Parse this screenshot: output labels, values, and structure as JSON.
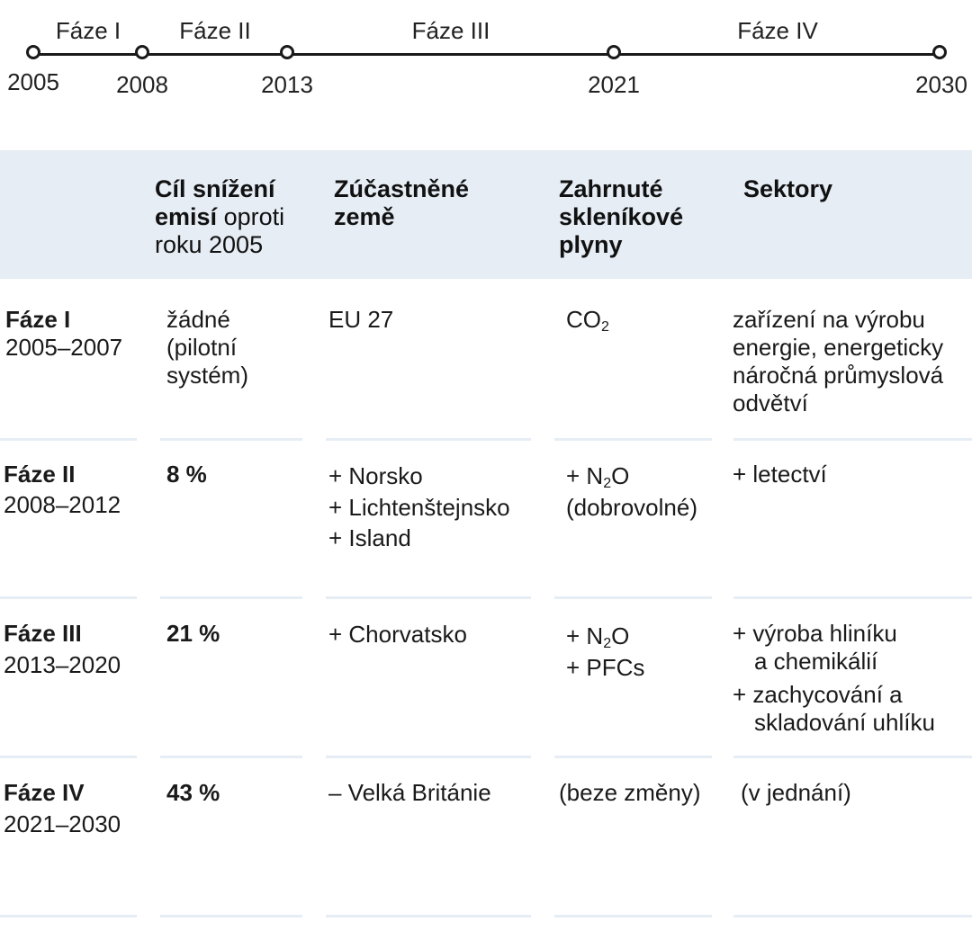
{
  "timeline": {
    "phases": [
      "Fáze I",
      "Fáze II",
      "Fáze III",
      "Fáze IV"
    ],
    "years": [
      "2005",
      "2008",
      "2013",
      "2021",
      "2030"
    ]
  },
  "table": {
    "headers": {
      "target_bold": "Cíl snížení emisí",
      "target_light": "oproti roku 2005",
      "countries": "Zúčastněné země",
      "gases": "Zahrnuté skleníkové plyny",
      "sectors": "Sektory"
    },
    "rows": [
      {
        "phase": "Fáze I",
        "period": "2005–2007",
        "target": "žádné (pilotní systém)",
        "countries": [
          "EU 27"
        ],
        "gas_prefix": "CO",
        "gas_sub": "2",
        "gas_suffix": "",
        "sectors": [
          "zařízení na výrobu energie, energeticky náročná průmyslová odvětví"
        ]
      },
      {
        "phase": "Fáze II",
        "period": "2008–2012",
        "target": "8 %",
        "countries": [
          "+ Norsko",
          "+ Lichtenštejnsko",
          "+ Island"
        ],
        "gas_prefix": "+ N",
        "gas_sub": "2",
        "gas_suffix": "O",
        "gas_note": "(dobrovolné)",
        "sectors": [
          "+ letectví"
        ]
      },
      {
        "phase": "Fáze III",
        "period": "2013–2020",
        "target": "21 %",
        "countries": [
          "+ Chorvatsko"
        ],
        "gas_prefix": "+ N",
        "gas_sub": "2",
        "gas_suffix": "O",
        "gas_extra": "+ PFCs",
        "sectors": [
          "+ výroba hliníku",
          "a chemikálií",
          "+ zachycování a",
          "skladování uhlíku"
        ]
      },
      {
        "phase": "Fáze IV",
        "period": "2021–2030",
        "target": "43 %",
        "countries": [
          "– Velká Británie"
        ],
        "gases": "(beze změny)",
        "sectors": [
          "(v jednání)"
        ]
      }
    ]
  }
}
